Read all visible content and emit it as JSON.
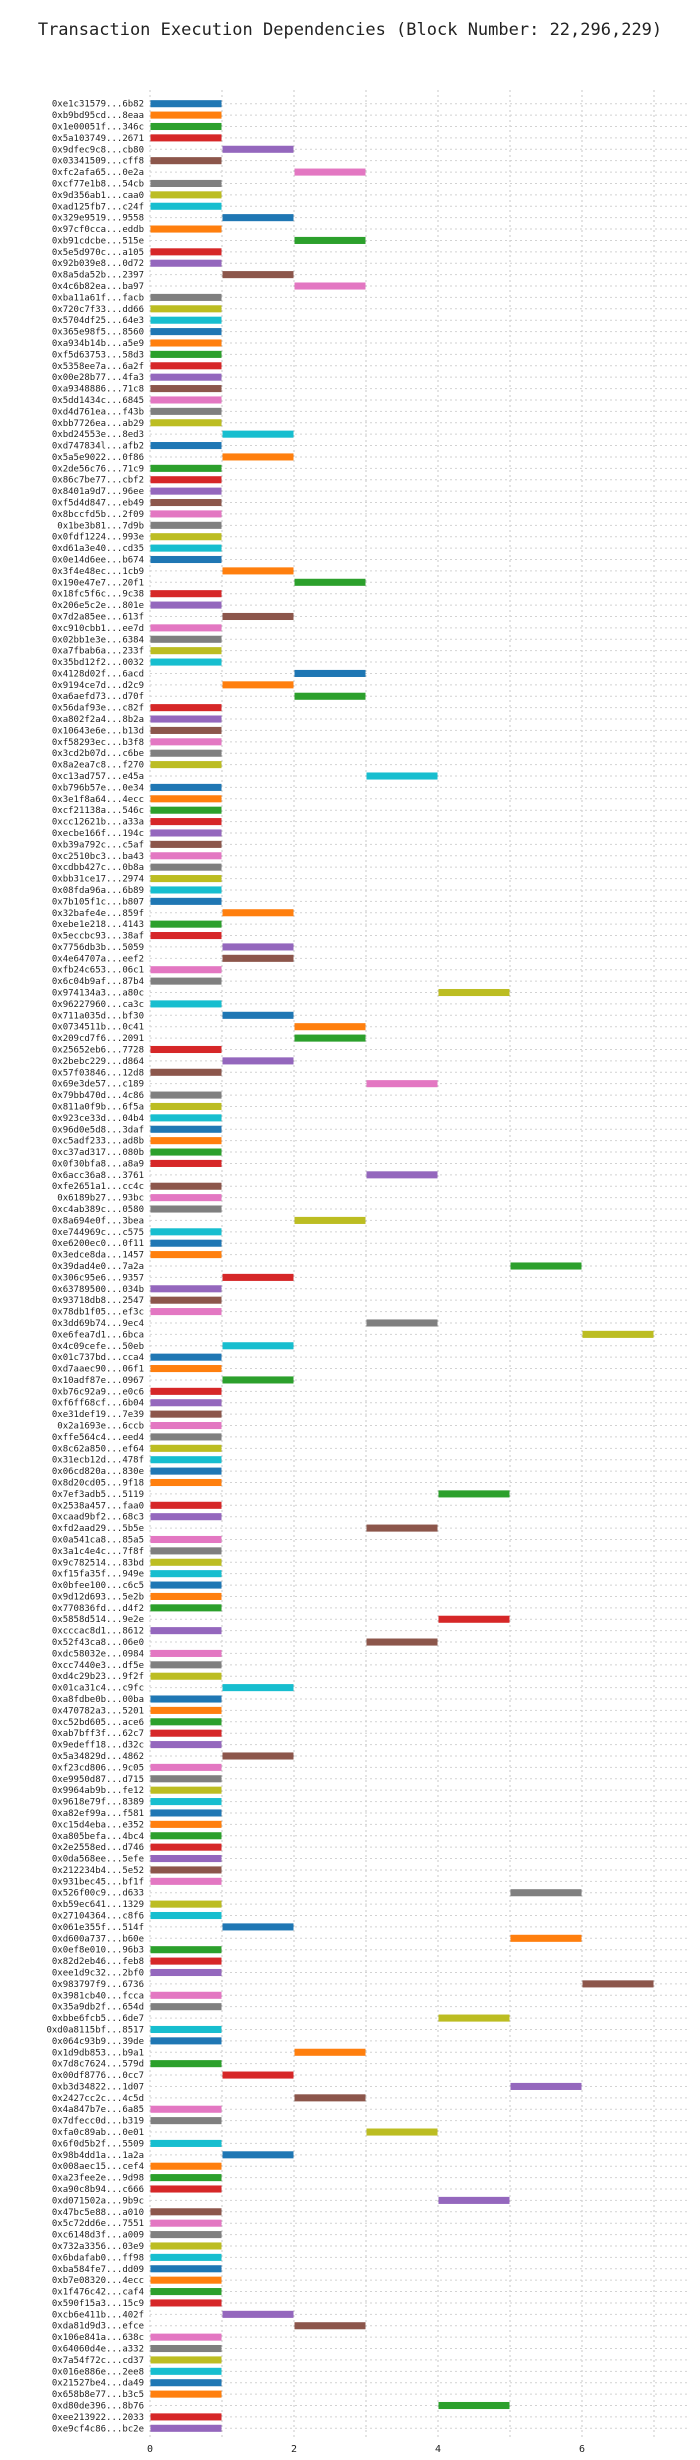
{
  "chart_data": {
    "type": "gantt-bar",
    "title": "Transaction Execution Dependencies (Block Number: 22,296,229)",
    "xlabel": "",
    "ylabel": "",
    "xlim": [
      0,
      7.5
    ],
    "xticks": [
      0,
      2,
      4,
      6
    ],
    "grid": true,
    "colors": [
      "#1f77b4",
      "#ff7f0e",
      "#2ca02c",
      "#d62728",
      "#9467bd",
      "#8c564b",
      "#e377c2",
      "#7f7f7f",
      "#bcbd22",
      "#17becf"
    ],
    "tasks": [
      {
        "label": "0xe1c31579...6b82",
        "start": 0,
        "end": 1
      },
      {
        "label": "0xb9bd95cd...8eaa",
        "start": 0,
        "end": 1
      },
      {
        "label": "0x1e00051f...346c",
        "start": 0,
        "end": 1
      },
      {
        "label": "0x5a103749...2671",
        "start": 0,
        "end": 1
      },
      {
        "label": "0x9dfec9c8...cb80",
        "start": 1,
        "end": 2
      },
      {
        "label": "0x03341509...cff8",
        "start": 0,
        "end": 1
      },
      {
        "label": "0xfc2afa65...0e2a",
        "start": 2,
        "end": 3
      },
      {
        "label": "0xcf77e1b8...54cb",
        "start": 0,
        "end": 1
      },
      {
        "label": "0x9d356ab1...caa0",
        "start": 0,
        "end": 1
      },
      {
        "label": "0xad125fb7...c24f",
        "start": 0,
        "end": 1
      },
      {
        "label": "0x329e9519...9558",
        "start": 1,
        "end": 2
      },
      {
        "label": "0x97cf0cca...eddb",
        "start": 0,
        "end": 1
      },
      {
        "label": "0xb91cdcbe...515e",
        "start": 2,
        "end": 3
      },
      {
        "label": "0x5e5d970c...a105",
        "start": 0,
        "end": 1
      },
      {
        "label": "0x92b039e8...0d72",
        "start": 0,
        "end": 1
      },
      {
        "label": "0x8a5da52b...2397",
        "start": 1,
        "end": 2
      },
      {
        "label": "0x4c6b82ea...ba97",
        "start": 2,
        "end": 3
      },
      {
        "label": "0xba11a61f...facb",
        "start": 0,
        "end": 1
      },
      {
        "label": "0x720c7f33...dd66",
        "start": 0,
        "end": 1
      },
      {
        "label": "0x5704df25...64e3",
        "start": 0,
        "end": 1
      },
      {
        "label": "0x365e98f5...8560",
        "start": 0,
        "end": 1
      },
      {
        "label": "0xa934b14b...a5e9",
        "start": 0,
        "end": 1
      },
      {
        "label": "0xf5d63753...58d3",
        "start": 0,
        "end": 1
      },
      {
        "label": "0x5358ee7a...6a2f",
        "start": 0,
        "end": 1
      },
      {
        "label": "0x00e28b77...4fa3",
        "start": 0,
        "end": 1
      },
      {
        "label": "0xa9348886...71c8",
        "start": 0,
        "end": 1
      },
      {
        "label": "0x5dd1434c...6845",
        "start": 0,
        "end": 1
      },
      {
        "label": "0xd4d761ea...f43b",
        "start": 0,
        "end": 1
      },
      {
        "label": "0xbb7726ea...ab29",
        "start": 0,
        "end": 1
      },
      {
        "label": "0xbd24553e...8ed3",
        "start": 1,
        "end": 2
      },
      {
        "label": "0xd747834l...afb2",
        "start": 0,
        "end": 1
      },
      {
        "label": "0x5a5e9022...0f86",
        "start": 1,
        "end": 2
      },
      {
        "label": "0x2de56c76...71c9",
        "start": 0,
        "end": 1
      },
      {
        "label": "0x86c7be77...cbf2",
        "start": 0,
        "end": 1
      },
      {
        "label": "0x8401a9d7...96ee",
        "start": 0,
        "end": 1
      },
      {
        "label": "0xf5d4d847...eb49",
        "start": 0,
        "end": 1
      },
      {
        "label": "0x8bccfd5b...2f09",
        "start": 0,
        "end": 1
      },
      {
        "label": "0x1be3b81...7d9b",
        "start": 0,
        "end": 1
      },
      {
        "label": "0x0fdf1224...993e",
        "start": 0,
        "end": 1
      },
      {
        "label": "0xd61a3e40...cd35",
        "start": 0,
        "end": 1
      },
      {
        "label": "0x0e14d6ee...b674",
        "start": 0,
        "end": 1
      },
      {
        "label": "0x3f4e48ec...1cb9",
        "start": 1,
        "end": 2
      },
      {
        "label": "0x190e47e7...20f1",
        "start": 2,
        "end": 3
      },
      {
        "label": "0x18fc5f6c...9c38",
        "start": 0,
        "end": 1
      },
      {
        "label": "0x206e5c2e...801e",
        "start": 0,
        "end": 1
      },
      {
        "label": "0x7d2a85ee...613f",
        "start": 1,
        "end": 2
      },
      {
        "label": "0xc910cbb1...ee7d",
        "start": 0,
        "end": 1
      },
      {
        "label": "0x02bb1e3e...6384",
        "start": 0,
        "end": 1
      },
      {
        "label": "0xa7fbab6a...233f",
        "start": 0,
        "end": 1
      },
      {
        "label": "0x35bd12f2...0032",
        "start": 0,
        "end": 1
      },
      {
        "label": "0x4128d02f...6acd",
        "start": 2,
        "end": 3
      },
      {
        "label": "0x9194ce7d...d2c9",
        "start": 1,
        "end": 2
      },
      {
        "label": "0xa6aefd73...d70f",
        "start": 2,
        "end": 3
      },
      {
        "label": "0x56daf93e...c82f",
        "start": 0,
        "end": 1
      },
      {
        "label": "0xa802f2a4...8b2a",
        "start": 0,
        "end": 1
      },
      {
        "label": "0x10643e6e...b13d",
        "start": 0,
        "end": 1
      },
      {
        "label": "0xf58293ec...b3f8",
        "start": 0,
        "end": 1
      },
      {
        "label": "0x3cd2b07d...c6be",
        "start": 0,
        "end": 1
      },
      {
        "label": "0x8a2ea7c8...f270",
        "start": 0,
        "end": 1
      },
      {
        "label": "0xc13ad757...e45a",
        "start": 3,
        "end": 4
      },
      {
        "label": "0xb796b57e...0e34",
        "start": 0,
        "end": 1
      },
      {
        "label": "0x3e1f8a64...4ecc",
        "start": 0,
        "end": 1
      },
      {
        "label": "0xcf21138a...546c",
        "start": 0,
        "end": 1
      },
      {
        "label": "0xcc12621b...a33a",
        "start": 0,
        "end": 1
      },
      {
        "label": "0xecbe166f...194c",
        "start": 0,
        "end": 1
      },
      {
        "label": "0xb39a792c...c5af",
        "start": 0,
        "end": 1
      },
      {
        "label": "0xc2510bc3...ba43",
        "start": 0,
        "end": 1
      },
      {
        "label": "0xcdbb427c...0b8a",
        "start": 0,
        "end": 1
      },
      {
        "label": "0xbb31ce17...2974",
        "start": 0,
        "end": 1
      },
      {
        "label": "0x08fda96a...6b89",
        "start": 0,
        "end": 1
      },
      {
        "label": "0x7b105f1c...b807",
        "start": 0,
        "end": 1
      },
      {
        "label": "0x32bafe4e...859f",
        "start": 1,
        "end": 2
      },
      {
        "label": "0xebe1e218...4143",
        "start": 0,
        "end": 1
      },
      {
        "label": "0x5eccbc93...38af",
        "start": 0,
        "end": 1
      },
      {
        "label": "0x7756db3b...5059",
        "start": 1,
        "end": 2
      },
      {
        "label": "0x4e64707a...eef2",
        "start": 1,
        "end": 2
      },
      {
        "label": "0xfb24c653...06c1",
        "start": 0,
        "end": 1
      },
      {
        "label": "0x6c04b9af...87b4",
        "start": 0,
        "end": 1
      },
      {
        "label": "0x974134a3...a80c",
        "start": 4,
        "end": 5
      },
      {
        "label": "0x96227960...ca3c",
        "start": 0,
        "end": 1
      },
      {
        "label": "0x711a035d...bf30",
        "start": 1,
        "end": 2
      },
      {
        "label": "0x0734511b...0c41",
        "start": 2,
        "end": 3
      },
      {
        "label": "0x209cd7f6...2091",
        "start": 2,
        "end": 3
      },
      {
        "label": "0x25652eb6...7728",
        "start": 0,
        "end": 1
      },
      {
        "label": "0x2bebc229...d864",
        "start": 1,
        "end": 2
      },
      {
        "label": "0x57f03846...12d8",
        "start": 0,
        "end": 1
      },
      {
        "label": "0x69e3de57...c189",
        "start": 3,
        "end": 4
      },
      {
        "label": "0x79bb470d...4c86",
        "start": 0,
        "end": 1
      },
      {
        "label": "0x811a0f9b...6f5a",
        "start": 0,
        "end": 1
      },
      {
        "label": "0x923ce33d...04b4",
        "start": 0,
        "end": 1
      },
      {
        "label": "0x96d0e5d8...3daf",
        "start": 0,
        "end": 1
      },
      {
        "label": "0xc5adf233...ad8b",
        "start": 0,
        "end": 1
      },
      {
        "label": "0xc37ad317...080b",
        "start": 0,
        "end": 1
      },
      {
        "label": "0x0f30bfa8...a8a9",
        "start": 0,
        "end": 1
      },
      {
        "label": "0x6acc36a8...3761",
        "start": 3,
        "end": 4
      },
      {
        "label": "0xfe2651a1...cc4c",
        "start": 0,
        "end": 1
      },
      {
        "label": "0x6189b27...93bc",
        "start": 0,
        "end": 1
      },
      {
        "label": "0xc4ab389c...0580",
        "start": 0,
        "end": 1
      },
      {
        "label": "0x8a694e0f...3bea",
        "start": 2,
        "end": 3
      },
      {
        "label": "0xe744969c...c575",
        "start": 0,
        "end": 1
      },
      {
        "label": "0xe6200ec0...0f11",
        "start": 0,
        "end": 1
      },
      {
        "label": "0x3edce8da...1457",
        "start": 0,
        "end": 1
      },
      {
        "label": "0x39dad4e0...7a2a",
        "start": 5,
        "end": 6
      },
      {
        "label": "0x306c95e6...9357",
        "start": 1,
        "end": 2
      },
      {
        "label": "0x63789500...034b",
        "start": 0,
        "end": 1
      },
      {
        "label": "0x93718db8...2547",
        "start": 0,
        "end": 1
      },
      {
        "label": "0x78db1f05...ef3c",
        "start": 0,
        "end": 1
      },
      {
        "label": "0x3dd69b74...9ec4",
        "start": 3,
        "end": 4
      },
      {
        "label": "0xe6fea7d1...6bca",
        "start": 6,
        "end": 7
      },
      {
        "label": "0x4c09cefe...50eb",
        "start": 1,
        "end": 2
      },
      {
        "label": "0x01c737bd...cca4",
        "start": 0,
        "end": 1
      },
      {
        "label": "0xd7aaec90...06f1",
        "start": 0,
        "end": 1
      },
      {
        "label": "0x10adf87e...0967",
        "start": 1,
        "end": 2
      },
      {
        "label": "0xb76c92a9...e0c6",
        "start": 0,
        "end": 1
      },
      {
        "label": "0xf6ff68cf...6b04",
        "start": 0,
        "end": 1
      },
      {
        "label": "0xe31def19...7e39",
        "start": 0,
        "end": 1
      },
      {
        "label": "0x2a1693e...6ccb",
        "start": 0,
        "end": 1
      },
      {
        "label": "0xffe564c4...eed4",
        "start": 0,
        "end": 1
      },
      {
        "label": "0x8c62a850...ef64",
        "start": 0,
        "end": 1
      },
      {
        "label": "0x31ecb12d...478f",
        "start": 0,
        "end": 1
      },
      {
        "label": "0x06cd820a...830e",
        "start": 0,
        "end": 1
      },
      {
        "label": "0x8d20cd05...9f18",
        "start": 0,
        "end": 1
      },
      {
        "label": "0x7ef3adb5...5119",
        "start": 4,
        "end": 5
      },
      {
        "label": "0x2538a457...faa0",
        "start": 0,
        "end": 1
      },
      {
        "label": "0xcaad9bf2...68c3",
        "start": 0,
        "end": 1
      },
      {
        "label": "0xfd2aad29...5b5e",
        "start": 3,
        "end": 4
      },
      {
        "label": "0x0a541ca8...85a5",
        "start": 0,
        "end": 1
      },
      {
        "label": "0x3a1c4e4c...7f8f",
        "start": 0,
        "end": 1
      },
      {
        "label": "0x9c782514...83bd",
        "start": 0,
        "end": 1
      },
      {
        "label": "0xf15fa35f...949e",
        "start": 0,
        "end": 1
      },
      {
        "label": "0x0bfee100...c6c5",
        "start": 0,
        "end": 1
      },
      {
        "label": "0x9d12d693...5e2b",
        "start": 0,
        "end": 1
      },
      {
        "label": "0x770836fd...d4f2",
        "start": 0,
        "end": 1
      },
      {
        "label": "0x5858d514...9e2e",
        "start": 4,
        "end": 5
      },
      {
        "label": "0xcccac8d1...8612",
        "start": 0,
        "end": 1
      },
      {
        "label": "0x52f43ca8...06e0",
        "start": 3,
        "end": 4
      },
      {
        "label": "0xdc58032e...0984",
        "start": 0,
        "end": 1
      },
      {
        "label": "0xcc7440e3...df5e",
        "start": 0,
        "end": 1
      },
      {
        "label": "0xd4c29b23...9f2f",
        "start": 0,
        "end": 1
      },
      {
        "label": "0x01ca31c4...c9fc",
        "start": 1,
        "end": 2
      },
      {
        "label": "0xa8fdbe0b...00ba",
        "start": 0,
        "end": 1
      },
      {
        "label": "0x470782a3...5201",
        "start": 0,
        "end": 1
      },
      {
        "label": "0xc52bd605...ace6",
        "start": 0,
        "end": 1
      },
      {
        "label": "0xab7bff3f...62c7",
        "start": 0,
        "end": 1
      },
      {
        "label": "0x9edeff18...d32c",
        "start": 0,
        "end": 1
      },
      {
        "label": "0x5a34829d...4862",
        "start": 1,
        "end": 2
      },
      {
        "label": "0xf23cd806...9c05",
        "start": 0,
        "end": 1
      },
      {
        "label": "0xe9950d87...d715",
        "start": 0,
        "end": 1
      },
      {
        "label": "0x9964ab9b...fe12",
        "start": 0,
        "end": 1
      },
      {
        "label": "0x9618e79f...8389",
        "start": 0,
        "end": 1
      },
      {
        "label": "0xa82ef99a...f581",
        "start": 0,
        "end": 1
      },
      {
        "label": "0xc15d4eba...e352",
        "start": 0,
        "end": 1
      },
      {
        "label": "0xa805befa...4bc4",
        "start": 0,
        "end": 1
      },
      {
        "label": "0x2e2558ed...d746",
        "start": 0,
        "end": 1
      },
      {
        "label": "0x0da568ee...5efe",
        "start": 0,
        "end": 1
      },
      {
        "label": "0x212234b4...5e52",
        "start": 0,
        "end": 1
      },
      {
        "label": "0x931bec45...bf1f",
        "start": 0,
        "end": 1
      },
      {
        "label": "0x526f00c9...d633",
        "start": 5,
        "end": 6
      },
      {
        "label": "0xb59ec641...1329",
        "start": 0,
        "end": 1
      },
      {
        "label": "0x27104364...c8f6",
        "start": 0,
        "end": 1
      },
      {
        "label": "0x061e355f...514f",
        "start": 1,
        "end": 2
      },
      {
        "label": "0xd600a737...b60e",
        "start": 5,
        "end": 6
      },
      {
        "label": "0x0ef8e010...96b3",
        "start": 0,
        "end": 1
      },
      {
        "label": "0x82d2eb46...feb8",
        "start": 0,
        "end": 1
      },
      {
        "label": "0xee1d9c32...2bf0",
        "start": 0,
        "end": 1
      },
      {
        "label": "0x983797f9...6736",
        "start": 6,
        "end": 7
      },
      {
        "label": "0x3981cb40...fcca",
        "start": 0,
        "end": 1
      },
      {
        "label": "0x35a9db2f...654d",
        "start": 0,
        "end": 1
      },
      {
        "label": "0xbbe6fcb5...6de7",
        "start": 4,
        "end": 5
      },
      {
        "label": "0xd0a8115bf...8517",
        "start": 0,
        "end": 1
      },
      {
        "label": "0x064c93b9...39de",
        "start": 0,
        "end": 1
      },
      {
        "label": "0x1d9db853...b9a1",
        "start": 2,
        "end": 3
      },
      {
        "label": "0x7d8c7624...579d",
        "start": 0,
        "end": 1
      },
      {
        "label": "0x00df8776...0cc7",
        "start": 1,
        "end": 2
      },
      {
        "label": "0xb3d34822...1d07",
        "start": 5,
        "end": 6
      },
      {
        "label": "0x2427cc2c...4c5d",
        "start": 2,
        "end": 3
      },
      {
        "label": "0x4a847b7e...6a85",
        "start": 0,
        "end": 1
      },
      {
        "label": "0x7dfecc0d...b319",
        "start": 0,
        "end": 1
      },
      {
        "label": "0xfa0c89ab...0e01",
        "start": 3,
        "end": 4
      },
      {
        "label": "0x6f0d5b2f...5509",
        "start": 0,
        "end": 1
      },
      {
        "label": "0x98b4dd1a...1a2a",
        "start": 1,
        "end": 2
      },
      {
        "label": "0x008aec15...cef4",
        "start": 0,
        "end": 1
      },
      {
        "label": "0xa23fee2e...9d98",
        "start": 0,
        "end": 1
      },
      {
        "label": "0xa90c8b94...c666",
        "start": 0,
        "end": 1
      },
      {
        "label": "0xd071502a...9b9c",
        "start": 4,
        "end": 5
      },
      {
        "label": "0x47bc5e88...a010",
        "start": 0,
        "end": 1
      },
      {
        "label": "0x5c72dd6e...7551",
        "start": 0,
        "end": 1
      },
      {
        "label": "0xc6148d3f...a009",
        "start": 0,
        "end": 1
      },
      {
        "label": "0x732a3356...03e9",
        "start": 0,
        "end": 1
      },
      {
        "label": "0x6bdafab0...ff98",
        "start": 0,
        "end": 1
      },
      {
        "label": "0xba584fe7...dd09",
        "start": 0,
        "end": 1
      },
      {
        "label": "0xb7e08320...4ecc",
        "start": 0,
        "end": 1
      },
      {
        "label": "0x1f476c42...caf4",
        "start": 0,
        "end": 1
      },
      {
        "label": "0x590f15a3...15c9",
        "start": 0,
        "end": 1
      },
      {
        "label": "0xcb6e411b...402f",
        "start": 1,
        "end": 2
      },
      {
        "label": "0xda81d9d3...efce",
        "start": 2,
        "end": 3
      },
      {
        "label": "0x106e841a...638c",
        "start": 0,
        "end": 1
      },
      {
        "label": "0x64060d4e...a332",
        "start": 0,
        "end": 1
      },
      {
        "label": "0x7a54f72c...cd37",
        "start": 0,
        "end": 1
      },
      {
        "label": "0x016e886e...2ee8",
        "start": 0,
        "end": 1
      },
      {
        "label": "0x21527be4...da49",
        "start": 0,
        "end": 1
      },
      {
        "label": "0x658b8e77...b3c5",
        "start": 0,
        "end": 1
      },
      {
        "label": "0xd80de396...8b76",
        "start": 4,
        "end": 5
      },
      {
        "label": "0xee213922...2033",
        "start": 0,
        "end": 1
      },
      {
        "label": "0xe9cf4c86...bc2e",
        "start": 0,
        "end": 1
      }
    ]
  }
}
